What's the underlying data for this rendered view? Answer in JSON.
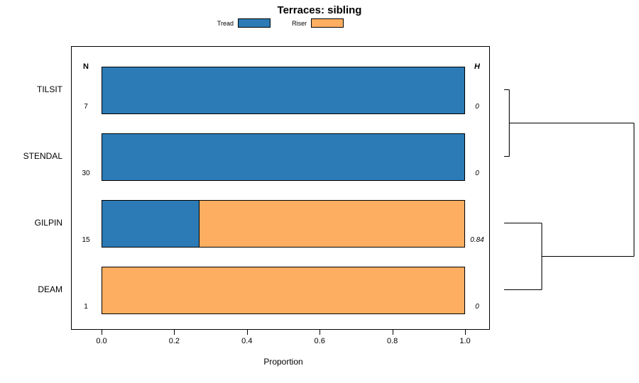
{
  "title": "Terraces: sibling",
  "legend": [
    {
      "label": "Tread",
      "color": "#2c7bb6"
    },
    {
      "label": "Riser",
      "color": "#fdae61"
    }
  ],
  "axis": {
    "xlabel": "Proportion",
    "tick_labels": [
      "0.0",
      "0.2",
      "0.4",
      "0.6",
      "0.8",
      "1.0"
    ],
    "tick_values": [
      0,
      0.2,
      0.4,
      0.6,
      0.8,
      1.0
    ]
  },
  "columns": {
    "n_header": "N",
    "h_header": "H"
  },
  "chart_data": {
    "type": "bar",
    "orientation": "horizontal",
    "stacked": true,
    "title": "Terraces: sibling",
    "xlabel": "Proportion",
    "xlim": [
      0,
      1
    ],
    "grid": false,
    "legend_position": "top",
    "categories": [
      "TILSIT",
      "STENDAL",
      "GILPIN",
      "DEAM"
    ],
    "series": [
      {
        "name": "Tread",
        "color": "#2c7bb6",
        "values": [
          1.0,
          1.0,
          0.267,
          0.0
        ]
      },
      {
        "name": "Riser",
        "color": "#fdae61",
        "values": [
          0.0,
          0.0,
          0.733,
          1.0
        ]
      }
    ],
    "n_values": [
      "7",
      "30",
      "15",
      "1"
    ],
    "h_values": [
      "0",
      "0",
      "0.84",
      "0"
    ],
    "dendrogram": {
      "clusters": [
        {
          "rows": [
            0,
            1
          ],
          "height": 0.04
        },
        {
          "rows": [
            2,
            3
          ],
          "height": 0.29
        }
      ],
      "root_height": 1.0
    }
  }
}
